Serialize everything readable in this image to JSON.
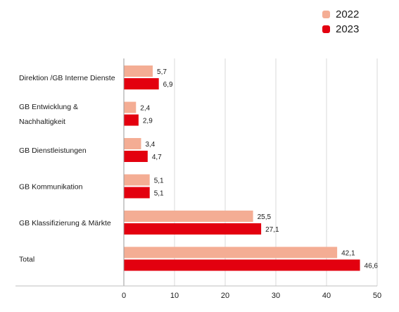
{
  "chart_data": {
    "type": "bar",
    "orientation": "horizontal",
    "categories": [
      [
        "Direktion /GB Interne Dienste"
      ],
      [
        "GB Entwicklung &",
        "Nachhaltigkeit"
      ],
      [
        "GB Dienstleistungen"
      ],
      [
        "GB Kommunikation"
      ],
      [
        "GB Klassifizierung & Märkte"
      ],
      [
        "Total"
      ]
    ],
    "series": [
      {
        "name": "2022",
        "color": "#f4ad94",
        "values": [
          5.7,
          2.4,
          3.4,
          5.1,
          25.5,
          42.1
        ],
        "labels": [
          "5,7",
          "2,4",
          "3,4",
          "5,1",
          "25,5",
          "42,1"
        ]
      },
      {
        "name": "2023",
        "color": "#e3000f",
        "values": [
          6.9,
          2.9,
          4.7,
          5.1,
          27.1,
          46.6
        ],
        "labels": [
          "6,9",
          "2,9",
          "4,7",
          "5,1",
          "27,1",
          "46,6"
        ]
      }
    ],
    "xlim": [
      0,
      50
    ],
    "xticks": [
      0,
      10,
      20,
      30,
      40,
      50
    ],
    "xtick_labels": [
      "0",
      "10",
      "20",
      "30",
      "40",
      "50"
    ],
    "grid": "vertical",
    "legend_position": "top-right"
  }
}
